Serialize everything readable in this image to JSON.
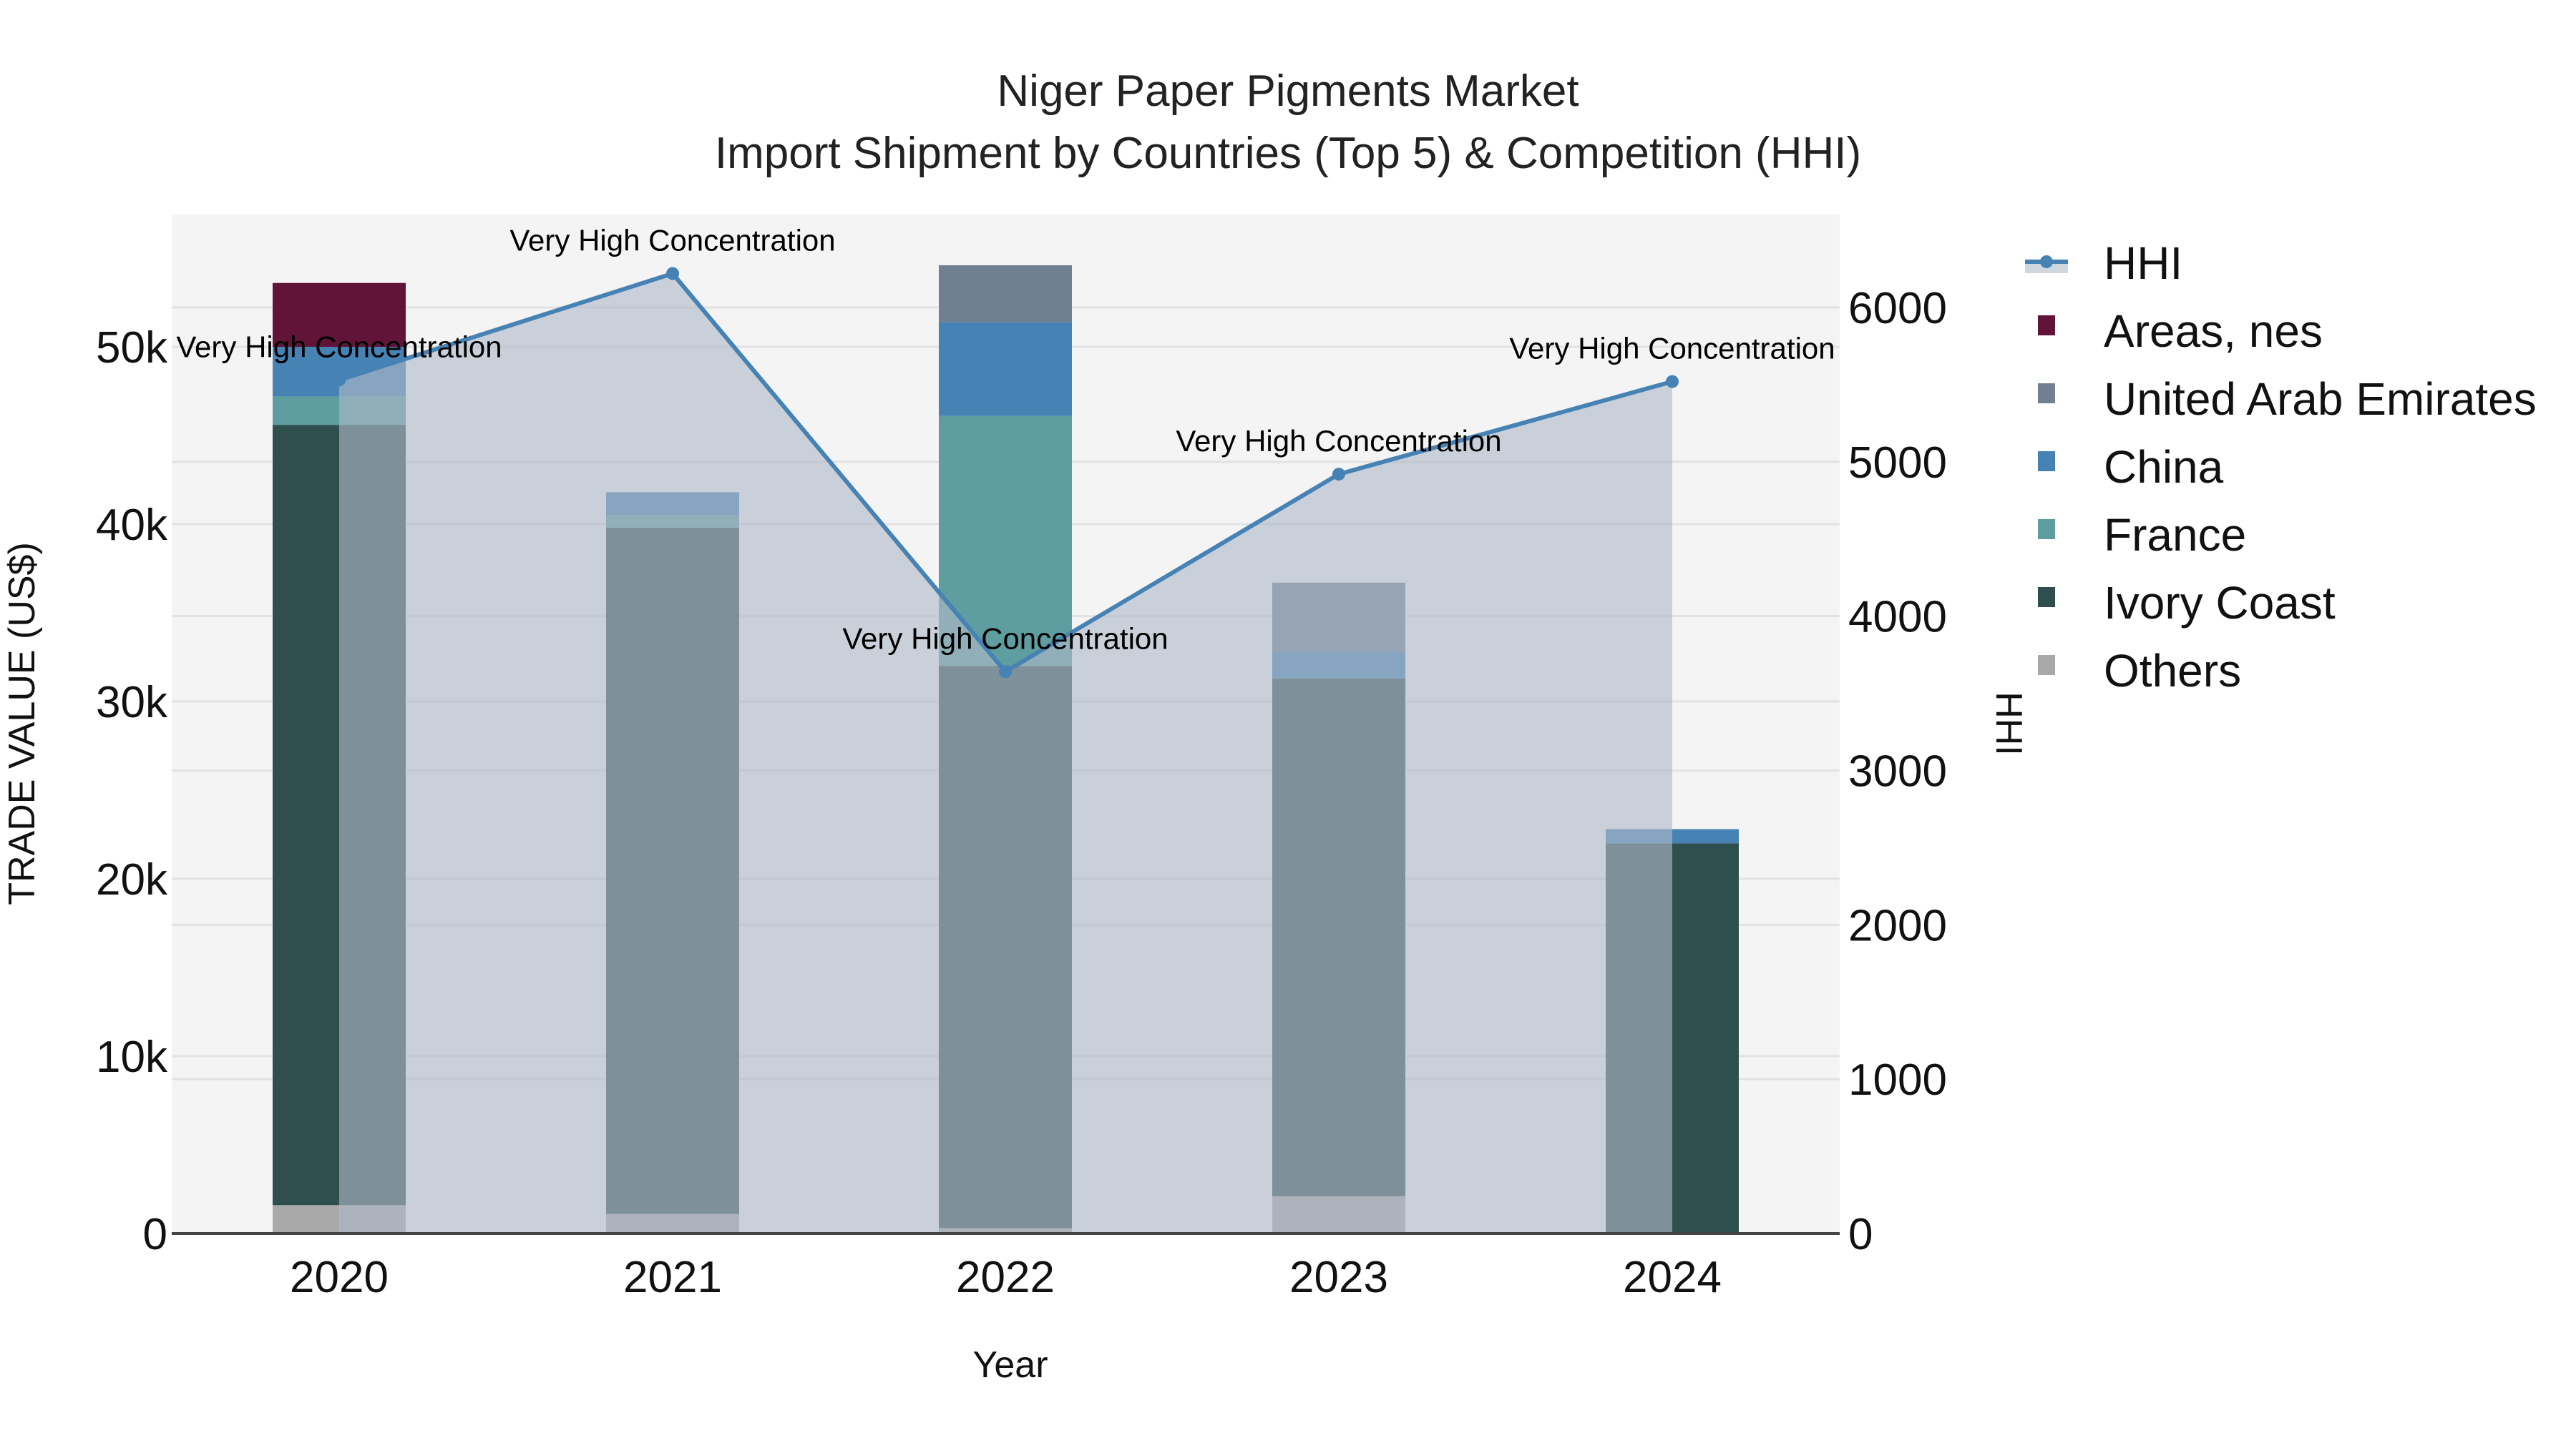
{
  "title": {
    "line1": "Niger Paper Pigments Market",
    "line2": "Import Shipment by Countries (Top 5) & Competition (HHI)"
  },
  "axes": {
    "x_title": "Year",
    "y_left_title": "TRADE VALUE (US$)",
    "y_right_title": "HHI",
    "y_left_ticks": [
      "0",
      "10k",
      "20k",
      "30k",
      "40k",
      "50k"
    ],
    "y_right_ticks": [
      "0",
      "1000",
      "2000",
      "3000",
      "4000",
      "5000",
      "6000"
    ]
  },
  "legend": {
    "items": [
      {
        "name": "HHI",
        "type": "line",
        "color": "#4682b4"
      },
      {
        "name": "Areas, nes",
        "type": "bar",
        "color": "#621338"
      },
      {
        "name": "United Arab Emirates",
        "type": "bar",
        "color": "#708090"
      },
      {
        "name": "China",
        "type": "bar",
        "color": "#4682b4"
      },
      {
        "name": "France",
        "type": "bar",
        "color": "#5f9ea0"
      },
      {
        "name": "Ivory Coast",
        "type": "bar",
        "color": "#2f4f4f"
      },
      {
        "name": "Others",
        "type": "bar",
        "color": "#a9a9a9"
      }
    ]
  },
  "colors": {
    "plot_bg": "#f4f4f4",
    "grid": "#e2e2e2",
    "hhi_line": "#4682b4",
    "hhi_fill": "rgba(176,186,200,0.62)",
    "axis_line": "#444444"
  },
  "chart_data": {
    "type": "bar",
    "stacked": true,
    "title": "Niger Paper Pigments Market — Import Shipment by Countries (Top 5) & Competition (HHI)",
    "xlabel": "Year",
    "ylabel": "TRADE VALUE (US$)",
    "y2label": "HHI",
    "ylim": [
      0,
      57500
    ],
    "y2lim": [
      0,
      6600
    ],
    "categories": [
      "2020",
      "2021",
      "2022",
      "2023",
      "2024"
    ],
    "series": [
      {
        "name": "Others",
        "color": "#a9a9a9",
        "values": [
          1600,
          1100,
          300,
          2100,
          0
        ]
      },
      {
        "name": "Ivory Coast",
        "color": "#2f4f4f",
        "values": [
          44000,
          38700,
          31700,
          29200,
          22000
        ]
      },
      {
        "name": "France",
        "color": "#5f9ea0",
        "values": [
          1600,
          700,
          14100,
          0,
          0
        ]
      },
      {
        "name": "China",
        "color": "#4682b4",
        "values": [
          2800,
          1300,
          5300,
          1500,
          800
        ]
      },
      {
        "name": "United Arab Emirates",
        "color": "#708090",
        "values": [
          0,
          0,
          3200,
          3900,
          0
        ]
      },
      {
        "name": "Areas, nes",
        "color": "#621338",
        "values": [
          3600,
          0,
          0,
          0,
          0
        ]
      }
    ],
    "hhi": {
      "name": "HHI",
      "type": "line+area",
      "axis": "right",
      "values": [
        5530,
        6220,
        3640,
        4920,
        5520
      ],
      "annotations": [
        "Very High Concentration",
        "Very High Concentration",
        "Very High Concentration",
        "Very High Concentration",
        "Very High Concentration"
      ]
    },
    "grid": true,
    "legend_position": "right"
  }
}
